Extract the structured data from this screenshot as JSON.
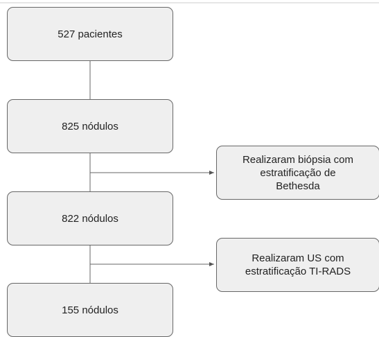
{
  "nodes": [
    {
      "lines": [
        "527 pacientes"
      ]
    },
    {
      "lines": [
        "825 nódulos"
      ]
    },
    {
      "lines": [
        "822 nódulos"
      ]
    },
    {
      "lines": [
        "155 nódulos"
      ]
    }
  ],
  "side_nodes": [
    {
      "lines": [
        "Realizaram biópsia com",
        "estratificação de",
        "Bethesda"
      ]
    },
    {
      "lines": [
        "Realizaram US com",
        "estratificação TI-RADS"
      ]
    }
  ]
}
